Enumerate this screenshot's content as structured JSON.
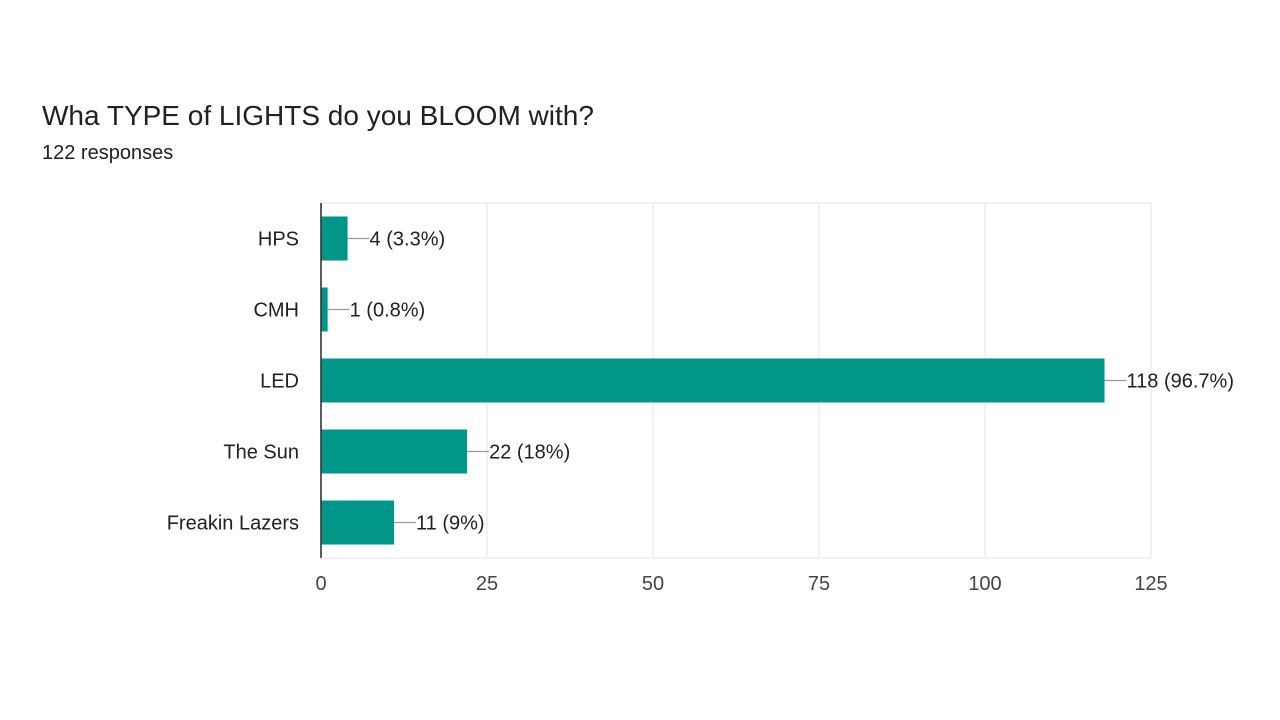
{
  "header": {
    "title": "Wha TYPE of LIGHTS do you BLOOM with?",
    "subtitle": "122 responses"
  },
  "colors": {
    "bar": "#009688",
    "grid": "#e6e6e6",
    "axis": "#333333",
    "leader": "#999999"
  },
  "chart_data": {
    "type": "bar",
    "orientation": "horizontal",
    "title": "Wha TYPE of LIGHTS do you BLOOM with?",
    "subtitle": "122 responses",
    "categories": [
      "HPS",
      "CMH",
      "LED",
      "The Sun",
      "Freakin Lazers"
    ],
    "values": [
      4,
      1,
      118,
      22,
      11
    ],
    "data_labels": [
      "4 (3.3%)",
      "1 (0.8%)",
      "118 (96.7%)",
      "22 (18%)",
      "11 (9%)"
    ],
    "xlim": [
      0,
      125
    ],
    "xticks": [
      0,
      25,
      50,
      75,
      100,
      125
    ],
    "xtick_labels": [
      "0",
      "25",
      "50",
      "75",
      "100",
      "125"
    ],
    "grid": true,
    "legend": "none"
  }
}
